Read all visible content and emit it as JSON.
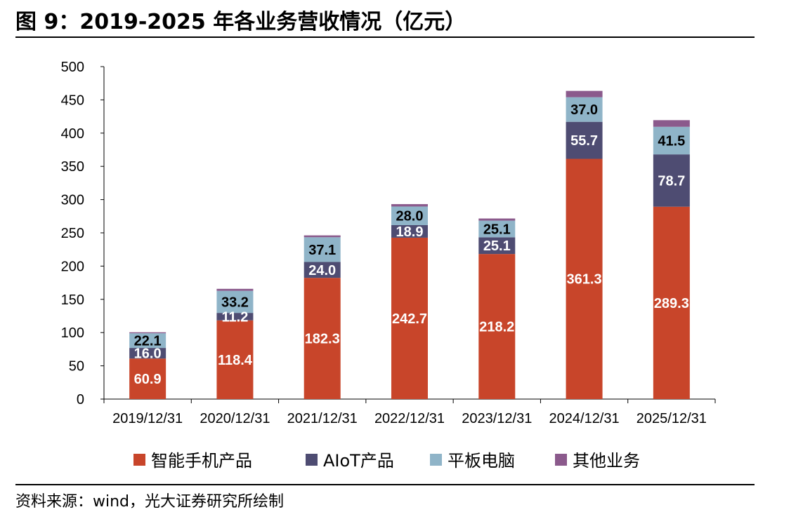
{
  "header": {
    "title": "图 9：2019-2025 年各业务营收情况（亿元）"
  },
  "footer": {
    "source": "资料来源：wind，光大证券研究所绘制"
  },
  "chart_data": {
    "type": "bar",
    "stacked": true,
    "title": "",
    "xlabel": "",
    "ylabel": "",
    "ylim": [
      0,
      500
    ],
    "yticks": [
      0,
      50,
      100,
      150,
      200,
      250,
      300,
      350,
      400,
      450,
      500
    ],
    "categories": [
      "2019/12/31",
      "2020/12/31",
      "2021/12/31",
      "2022/12/31",
      "2023/12/31",
      "2024/12/31",
      "2025/12/31"
    ],
    "legend_position": "bottom",
    "grid": false,
    "series": [
      {
        "name": "智能手机产品",
        "color": "#C8452A",
        "label_color": "#ffffff",
        "values": [
          60.9,
          118.4,
          182.3,
          242.7,
          218.2,
          361.3,
          289.3
        ]
      },
      {
        "name": "AIoT产品",
        "color": "#4E4C72",
        "label_color": "#ffffff",
        "values": [
          16.0,
          11.2,
          24.0,
          18.9,
          25.1,
          55.7,
          78.7
        ]
      },
      {
        "name": "平板电脑",
        "color": "#8FB4C8",
        "label_color": "#000000",
        "values": [
          22.1,
          33.2,
          37.1,
          28.0,
          25.1,
          37.0,
          41.5
        ]
      },
      {
        "name": "其他业务",
        "color": "#8B5A8C",
        "label_color": null,
        "values": [
          1.5,
          3.0,
          2.8,
          3.6,
          3.2,
          9.5,
          10.0
        ]
      }
    ]
  }
}
